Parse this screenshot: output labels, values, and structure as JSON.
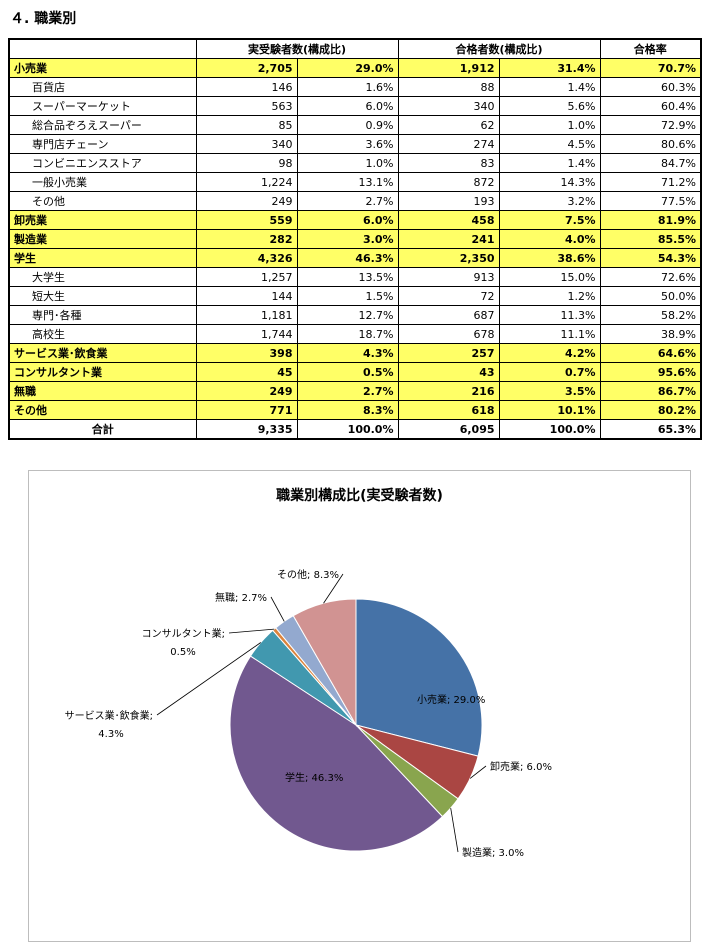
{
  "section_title": "４. 職業別",
  "headers": {
    "examinees": "実受験者数(構成比)",
    "passers": "合格者数(構成比)",
    "rate": "合格率"
  },
  "rows": [
    {
      "name": "小売業",
      "examinees": "2,705",
      "examinees_ratio": "29.0%",
      "passers": "1,912",
      "passers_ratio": "31.4%",
      "rate": "70.7%",
      "highlight": true
    },
    {
      "name": "百貨店",
      "examinees": "146",
      "examinees_ratio": "1.6%",
      "passers": "88",
      "passers_ratio": "1.4%",
      "rate": "60.3%",
      "highlight": false
    },
    {
      "name": "スーパーマーケット",
      "examinees": "563",
      "examinees_ratio": "6.0%",
      "passers": "340",
      "passers_ratio": "5.6%",
      "rate": "60.4%",
      "highlight": false
    },
    {
      "name": "総合品ぞろえスーパー",
      "examinees": "85",
      "examinees_ratio": "0.9%",
      "passers": "62",
      "passers_ratio": "1.0%",
      "rate": "72.9%",
      "highlight": false
    },
    {
      "name": "専門店チェーン",
      "examinees": "340",
      "examinees_ratio": "3.6%",
      "passers": "274",
      "passers_ratio": "4.5%",
      "rate": "80.6%",
      "highlight": false
    },
    {
      "name": "コンビニエンスストア",
      "examinees": "98",
      "examinees_ratio": "1.0%",
      "passers": "83",
      "passers_ratio": "1.4%",
      "rate": "84.7%",
      "highlight": false
    },
    {
      "name": "一般小売業",
      "examinees": "1,224",
      "examinees_ratio": "13.1%",
      "passers": "872",
      "passers_ratio": "14.3%",
      "rate": "71.2%",
      "highlight": false
    },
    {
      "name": "その他",
      "examinees": "249",
      "examinees_ratio": "2.7%",
      "passers": "193",
      "passers_ratio": "3.2%",
      "rate": "77.5%",
      "highlight": false
    },
    {
      "name": "卸売業",
      "examinees": "559",
      "examinees_ratio": "6.0%",
      "passers": "458",
      "passers_ratio": "7.5%",
      "rate": "81.9%",
      "highlight": true
    },
    {
      "name": "製造業",
      "examinees": "282",
      "examinees_ratio": "3.0%",
      "passers": "241",
      "passers_ratio": "4.0%",
      "rate": "85.5%",
      "highlight": true
    },
    {
      "name": "学生",
      "examinees": "4,326",
      "examinees_ratio": "46.3%",
      "passers": "2,350",
      "passers_ratio": "38.6%",
      "rate": "54.3%",
      "highlight": true
    },
    {
      "name": "大学生",
      "examinees": "1,257",
      "examinees_ratio": "13.5%",
      "passers": "913",
      "passers_ratio": "15.0%",
      "rate": "72.6%",
      "highlight": false
    },
    {
      "name": "短大生",
      "examinees": "144",
      "examinees_ratio": "1.5%",
      "passers": "72",
      "passers_ratio": "1.2%",
      "rate": "50.0%",
      "highlight": false
    },
    {
      "name": "専門･各種",
      "examinees": "1,181",
      "examinees_ratio": "12.7%",
      "passers": "687",
      "passers_ratio": "11.3%",
      "rate": "58.2%",
      "highlight": false
    },
    {
      "name": "高校生",
      "examinees": "1,744",
      "examinees_ratio": "18.7%",
      "passers": "678",
      "passers_ratio": "11.1%",
      "rate": "38.9%",
      "highlight": false
    },
    {
      "name": "サービス業･飲食業",
      "examinees": "398",
      "examinees_ratio": "4.3%",
      "passers": "257",
      "passers_ratio": "4.2%",
      "rate": "64.6%",
      "highlight": true
    },
    {
      "name": "コンサルタント業",
      "examinees": "45",
      "examinees_ratio": "0.5%",
      "passers": "43",
      "passers_ratio": "0.7%",
      "rate": "95.6%",
      "highlight": true
    },
    {
      "name": "無職",
      "examinees": "249",
      "examinees_ratio": "2.7%",
      "passers": "216",
      "passers_ratio": "3.5%",
      "rate": "86.7%",
      "highlight": true
    },
    {
      "name": "その他",
      "examinees": "771",
      "examinees_ratio": "8.3%",
      "passers": "618",
      "passers_ratio": "10.1%",
      "rate": "80.2%",
      "highlight": true
    }
  ],
  "total": {
    "name": "合計",
    "examinees": "9,335",
    "examinees_ratio": "100.0%",
    "passers": "6,095",
    "passers_ratio": "100.0%",
    "rate": "65.3%"
  },
  "chart_data": {
    "type": "pie",
    "title": "職業別構成比(実受験者数)",
    "slices": [
      {
        "label": "小売業",
        "value": 29.0,
        "display": "小売業; 29.0%",
        "color": "#4572a7"
      },
      {
        "label": "卸売業",
        "value": 6.0,
        "display": "卸売業; 6.0%",
        "color": "#aa4643"
      },
      {
        "label": "製造業",
        "value": 3.0,
        "display": "製造業; 3.0%",
        "color": "#89a54e"
      },
      {
        "label": "学生",
        "value": 46.3,
        "display": "学生; 46.3%",
        "color": "#71588f"
      },
      {
        "label": "サービス業･飲食業",
        "value": 4.3,
        "display_lines": [
          "サービス業･飲食業;",
          "4.3%"
        ],
        "color": "#4198af"
      },
      {
        "label": "コンサルタント業",
        "value": 0.5,
        "display_lines": [
          "コンサルタント業;",
          "0.5%"
        ],
        "color": "#db843d"
      },
      {
        "label": "無職",
        "value": 2.7,
        "display": "無職; 2.7%",
        "color": "#93a9cf"
      },
      {
        "label": "その他",
        "value": 8.3,
        "display": "その他; 8.3%",
        "color": "#d19392"
      }
    ]
  }
}
